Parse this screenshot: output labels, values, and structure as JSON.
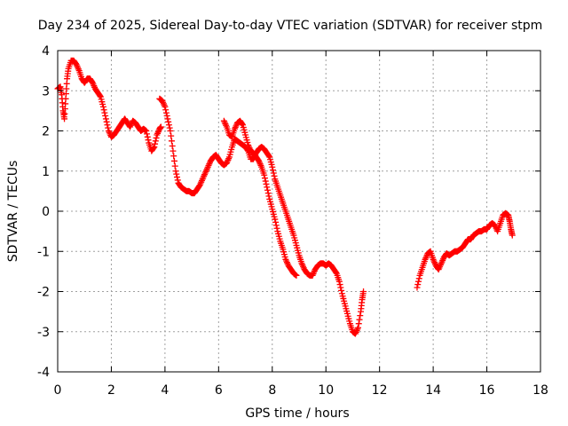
{
  "chart_data": {
    "type": "scatter",
    "title": "Day 234 of 2025, Sidereal Day-to-day VTEC variation (SDTVAR) for receiver stpm",
    "xlabel": "GPS time / hours",
    "ylabel": "SDTVAR / TECUs",
    "xlim": [
      0,
      18
    ],
    "ylim": [
      -4,
      4
    ],
    "xticks": [
      0,
      2,
      4,
      6,
      8,
      10,
      12,
      14,
      16,
      18
    ],
    "yticks": [
      -4,
      -3,
      -2,
      -1,
      0,
      1,
      2,
      3,
      4
    ],
    "grid": true,
    "marker": "+",
    "color": "#ff0000",
    "series": [
      {
        "name": "SDTVAR",
        "segments": [
          [
            [
              0.0,
              3.05
            ],
            [
              0.1,
              3.1
            ],
            [
              0.15,
              2.9
            ],
            [
              0.2,
              2.5
            ],
            [
              0.25,
              2.3
            ],
            [
              0.3,
              2.8
            ],
            [
              0.35,
              3.3
            ],
            [
              0.4,
              3.55
            ],
            [
              0.5,
              3.75
            ],
            [
              0.6,
              3.75
            ],
            [
              0.7,
              3.65
            ],
            [
              0.8,
              3.5
            ],
            [
              0.9,
              3.3
            ],
            [
              1.0,
              3.2
            ],
            [
              1.1,
              3.3
            ],
            [
              1.2,
              3.3
            ],
            [
              1.3,
              3.2
            ],
            [
              1.4,
              3.05
            ],
            [
              1.5,
              2.95
            ],
            [
              1.6,
              2.85
            ],
            [
              1.7,
              2.6
            ],
            [
              1.8,
              2.3
            ],
            [
              1.9,
              2.0
            ],
            [
              2.0,
              1.85
            ],
            [
              2.1,
              1.9
            ],
            [
              2.2,
              2.0
            ],
            [
              2.3,
              2.1
            ],
            [
              2.4,
              2.2
            ],
            [
              2.5,
              2.3
            ],
            [
              2.6,
              2.2
            ],
            [
              2.7,
              2.1
            ],
            [
              2.8,
              2.25
            ],
            [
              2.9,
              2.2
            ],
            [
              3.0,
              2.1
            ],
            [
              3.1,
              2.0
            ],
            [
              3.2,
              2.05
            ],
            [
              3.3,
              2.0
            ],
            [
              3.4,
              1.7
            ],
            [
              3.5,
              1.5
            ],
            [
              3.6,
              1.6
            ],
            [
              3.7,
              1.9
            ],
            [
              3.8,
              2.05
            ],
            [
              3.85,
              2.1
            ]
          ],
          [
            [
              3.8,
              2.8
            ],
            [
              3.9,
              2.75
            ],
            [
              4.0,
              2.6
            ],
            [
              4.1,
              2.3
            ],
            [
              4.2,
              2.0
            ],
            [
              4.3,
              1.5
            ],
            [
              4.4,
              1.0
            ],
            [
              4.5,
              0.7
            ],
            [
              4.6,
              0.6
            ],
            [
              4.7,
              0.55
            ],
            [
              4.8,
              0.5
            ],
            [
              4.9,
              0.5
            ],
            [
              5.0,
              0.45
            ],
            [
              5.1,
              0.45
            ],
            [
              5.2,
              0.55
            ],
            [
              5.3,
              0.65
            ],
            [
              5.4,
              0.8
            ],
            [
              5.5,
              0.95
            ],
            [
              5.6,
              1.1
            ],
            [
              5.7,
              1.25
            ],
            [
              5.8,
              1.35
            ],
            [
              5.9,
              1.4
            ],
            [
              6.0,
              1.3
            ],
            [
              6.1,
              1.2
            ],
            [
              6.2,
              1.15
            ],
            [
              6.3,
              1.2
            ],
            [
              6.4,
              1.35
            ],
            [
              6.5,
              1.6
            ],
            [
              6.6,
              1.8
            ],
            [
              6.7,
              1.75
            ],
            [
              6.8,
              1.7
            ],
            [
              6.9,
              1.65
            ],
            [
              7.0,
              1.6
            ],
            [
              7.1,
              1.5
            ],
            [
              7.2,
              1.3
            ],
            [
              7.3,
              1.3
            ],
            [
              7.4,
              1.45
            ],
            [
              7.5,
              1.55
            ],
            [
              7.6,
              1.6
            ],
            [
              7.7,
              1.55
            ],
            [
              7.8,
              1.45
            ],
            [
              7.9,
              1.35
            ],
            [
              8.0,
              1.1
            ],
            [
              8.1,
              0.8
            ],
            [
              8.2,
              0.6
            ],
            [
              8.3,
              0.4
            ],
            [
              8.4,
              0.2
            ],
            [
              8.5,
              0.0
            ],
            [
              8.6,
              -0.2
            ],
            [
              8.7,
              -0.4
            ],
            [
              8.8,
              -0.6
            ],
            [
              8.9,
              -0.85
            ],
            [
              9.0,
              -1.1
            ],
            [
              9.1,
              -1.3
            ],
            [
              9.2,
              -1.45
            ],
            [
              9.3,
              -1.55
            ],
            [
              9.4,
              -1.6
            ],
            [
              9.5,
              -1.6
            ],
            [
              9.6,
              -1.45
            ],
            [
              9.7,
              -1.35
            ],
            [
              9.8,
              -1.3
            ],
            [
              9.9,
              -1.3
            ],
            [
              10.0,
              -1.35
            ],
            [
              10.1,
              -1.3
            ],
            [
              10.2,
              -1.35
            ],
            [
              10.3,
              -1.45
            ],
            [
              10.4,
              -1.55
            ],
            [
              10.5,
              -1.75
            ],
            [
              10.6,
              -2.05
            ],
            [
              10.7,
              -2.3
            ],
            [
              10.8,
              -2.55
            ],
            [
              10.9,
              -2.8
            ],
            [
              11.0,
              -3.0
            ],
            [
              11.1,
              -3.05
            ],
            [
              11.2,
              -2.9
            ],
            [
              11.3,
              -2.5
            ],
            [
              11.35,
              -2.2
            ],
            [
              11.4,
              -2.0
            ]
          ],
          [
            [
              6.2,
              2.25
            ],
            [
              6.3,
              2.1
            ],
            [
              6.4,
              1.9
            ],
            [
              6.5,
              1.85
            ],
            [
              6.6,
              2.05
            ],
            [
              6.7,
              2.2
            ],
            [
              6.8,
              2.25
            ],
            [
              6.9,
              2.15
            ],
            [
              7.0,
              1.9
            ],
            [
              7.1,
              1.65
            ],
            [
              7.2,
              1.5
            ],
            [
              7.3,
              1.45
            ],
            [
              7.4,
              1.35
            ],
            [
              7.5,
              1.25
            ],
            [
              7.6,
              1.1
            ],
            [
              7.7,
              0.9
            ],
            [
              7.8,
              0.6
            ],
            [
              7.9,
              0.3
            ],
            [
              8.0,
              0.05
            ],
            [
              8.1,
              -0.2
            ],
            [
              8.2,
              -0.5
            ],
            [
              8.3,
              -0.75
            ],
            [
              8.4,
              -0.95
            ],
            [
              8.5,
              -1.2
            ],
            [
              8.6,
              -1.35
            ],
            [
              8.7,
              -1.45
            ],
            [
              8.8,
              -1.55
            ],
            [
              8.9,
              -1.6
            ]
          ],
          [
            [
              13.4,
              -1.9
            ],
            [
              13.5,
              -1.6
            ],
            [
              13.6,
              -1.4
            ],
            [
              13.7,
              -1.2
            ],
            [
              13.8,
              -1.05
            ],
            [
              13.9,
              -1.0
            ],
            [
              14.0,
              -1.2
            ],
            [
              14.1,
              -1.35
            ],
            [
              14.2,
              -1.45
            ],
            [
              14.3,
              -1.3
            ],
            [
              14.4,
              -1.15
            ],
            [
              14.5,
              -1.05
            ],
            [
              14.6,
              -1.1
            ],
            [
              14.7,
              -1.05
            ],
            [
              14.8,
              -1.0
            ],
            [
              14.9,
              -1.0
            ],
            [
              15.0,
              -0.95
            ],
            [
              15.1,
              -0.9
            ],
            [
              15.2,
              -0.8
            ],
            [
              15.3,
              -0.7
            ],
            [
              15.4,
              -0.7
            ],
            [
              15.5,
              -0.6
            ],
            [
              15.6,
              -0.55
            ],
            [
              15.7,
              -0.5
            ],
            [
              15.8,
              -0.5
            ],
            [
              15.9,
              -0.45
            ],
            [
              16.0,
              -0.45
            ],
            [
              16.1,
              -0.35
            ],
            [
              16.2,
              -0.3
            ],
            [
              16.3,
              -0.35
            ],
            [
              16.4,
              -0.5
            ],
            [
              16.5,
              -0.3
            ],
            [
              16.6,
              -0.1
            ],
            [
              16.7,
              -0.05
            ],
            [
              16.8,
              -0.1
            ],
            [
              16.85,
              -0.25
            ],
            [
              16.9,
              -0.45
            ],
            [
              16.95,
              -0.6
            ]
          ]
        ]
      }
    ]
  }
}
